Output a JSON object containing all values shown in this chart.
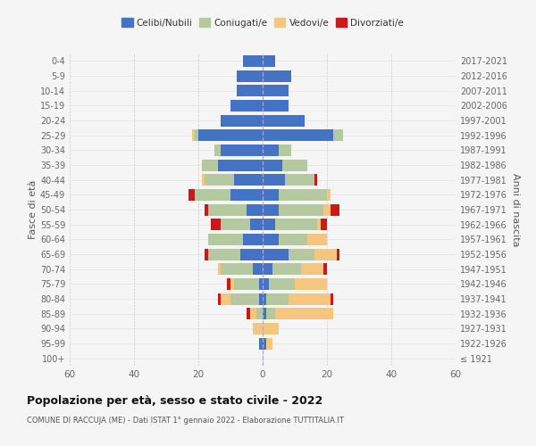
{
  "age_groups": [
    "100+",
    "95-99",
    "90-94",
    "85-89",
    "80-84",
    "75-79",
    "70-74",
    "65-69",
    "60-64",
    "55-59",
    "50-54",
    "45-49",
    "40-44",
    "35-39",
    "30-34",
    "25-29",
    "20-24",
    "15-19",
    "10-14",
    "5-9",
    "0-4"
  ],
  "birth_years": [
    "≤ 1921",
    "1922-1926",
    "1927-1931",
    "1932-1936",
    "1937-1941",
    "1942-1946",
    "1947-1951",
    "1952-1956",
    "1957-1961",
    "1962-1966",
    "1967-1971",
    "1972-1976",
    "1977-1981",
    "1982-1986",
    "1987-1991",
    "1992-1996",
    "1997-2001",
    "2002-2006",
    "2007-2011",
    "2012-2016",
    "2017-2021"
  ],
  "male": {
    "celibi": [
      0,
      1,
      0,
      0,
      1,
      1,
      3,
      7,
      6,
      4,
      5,
      10,
      9,
      14,
      13,
      20,
      13,
      10,
      8,
      8,
      6
    ],
    "coniugati": [
      0,
      0,
      0,
      2,
      9,
      8,
      10,
      10,
      11,
      9,
      12,
      11,
      9,
      5,
      2,
      1,
      0,
      0,
      0,
      0,
      0
    ],
    "vedovi": [
      0,
      0,
      3,
      2,
      3,
      1,
      1,
      0,
      0,
      0,
      0,
      0,
      1,
      0,
      0,
      1,
      0,
      0,
      0,
      0,
      0
    ],
    "divorziati": [
      0,
      0,
      0,
      1,
      1,
      1,
      0,
      1,
      0,
      3,
      1,
      2,
      0,
      0,
      0,
      0,
      0,
      0,
      0,
      0,
      0
    ]
  },
  "female": {
    "nubili": [
      0,
      1,
      0,
      1,
      1,
      2,
      3,
      8,
      5,
      4,
      5,
      5,
      7,
      6,
      5,
      22,
      13,
      8,
      8,
      9,
      4
    ],
    "coniugate": [
      0,
      0,
      0,
      3,
      7,
      8,
      9,
      8,
      9,
      13,
      14,
      15,
      9,
      8,
      4,
      3,
      0,
      0,
      0,
      0,
      0
    ],
    "vedove": [
      0,
      2,
      5,
      18,
      13,
      10,
      7,
      7,
      6,
      1,
      2,
      1,
      0,
      0,
      0,
      0,
      0,
      0,
      0,
      0,
      0
    ],
    "divorziate": [
      0,
      0,
      0,
      0,
      1,
      0,
      1,
      1,
      0,
      2,
      3,
      0,
      1,
      0,
      0,
      0,
      0,
      0,
      0,
      0,
      0
    ]
  },
  "colors": {
    "celibi": "#4472c4",
    "coniugati": "#b5c9a1",
    "vedovi": "#f5c77e",
    "divorziati": "#cc1818"
  },
  "xlim": [
    -60,
    60
  ],
  "xticks": [
    -60,
    -40,
    -20,
    0,
    20,
    40,
    60
  ],
  "title": "Popolazione per età, sesso e stato civile - 2022",
  "subtitle": "COMUNE DI RACCUJA (ME) - Dati ISTAT 1° gennaio 2022 - Elaborazione TUTTITALIA.IT",
  "ylabel_left": "Fasce di età",
  "ylabel_right": "Anni di nascita",
  "legend_labels": [
    "Celibi/Nubili",
    "Coniugati/e",
    "Vedovi/e",
    "Divorziati/e"
  ],
  "bg_color": "#f5f5f5"
}
